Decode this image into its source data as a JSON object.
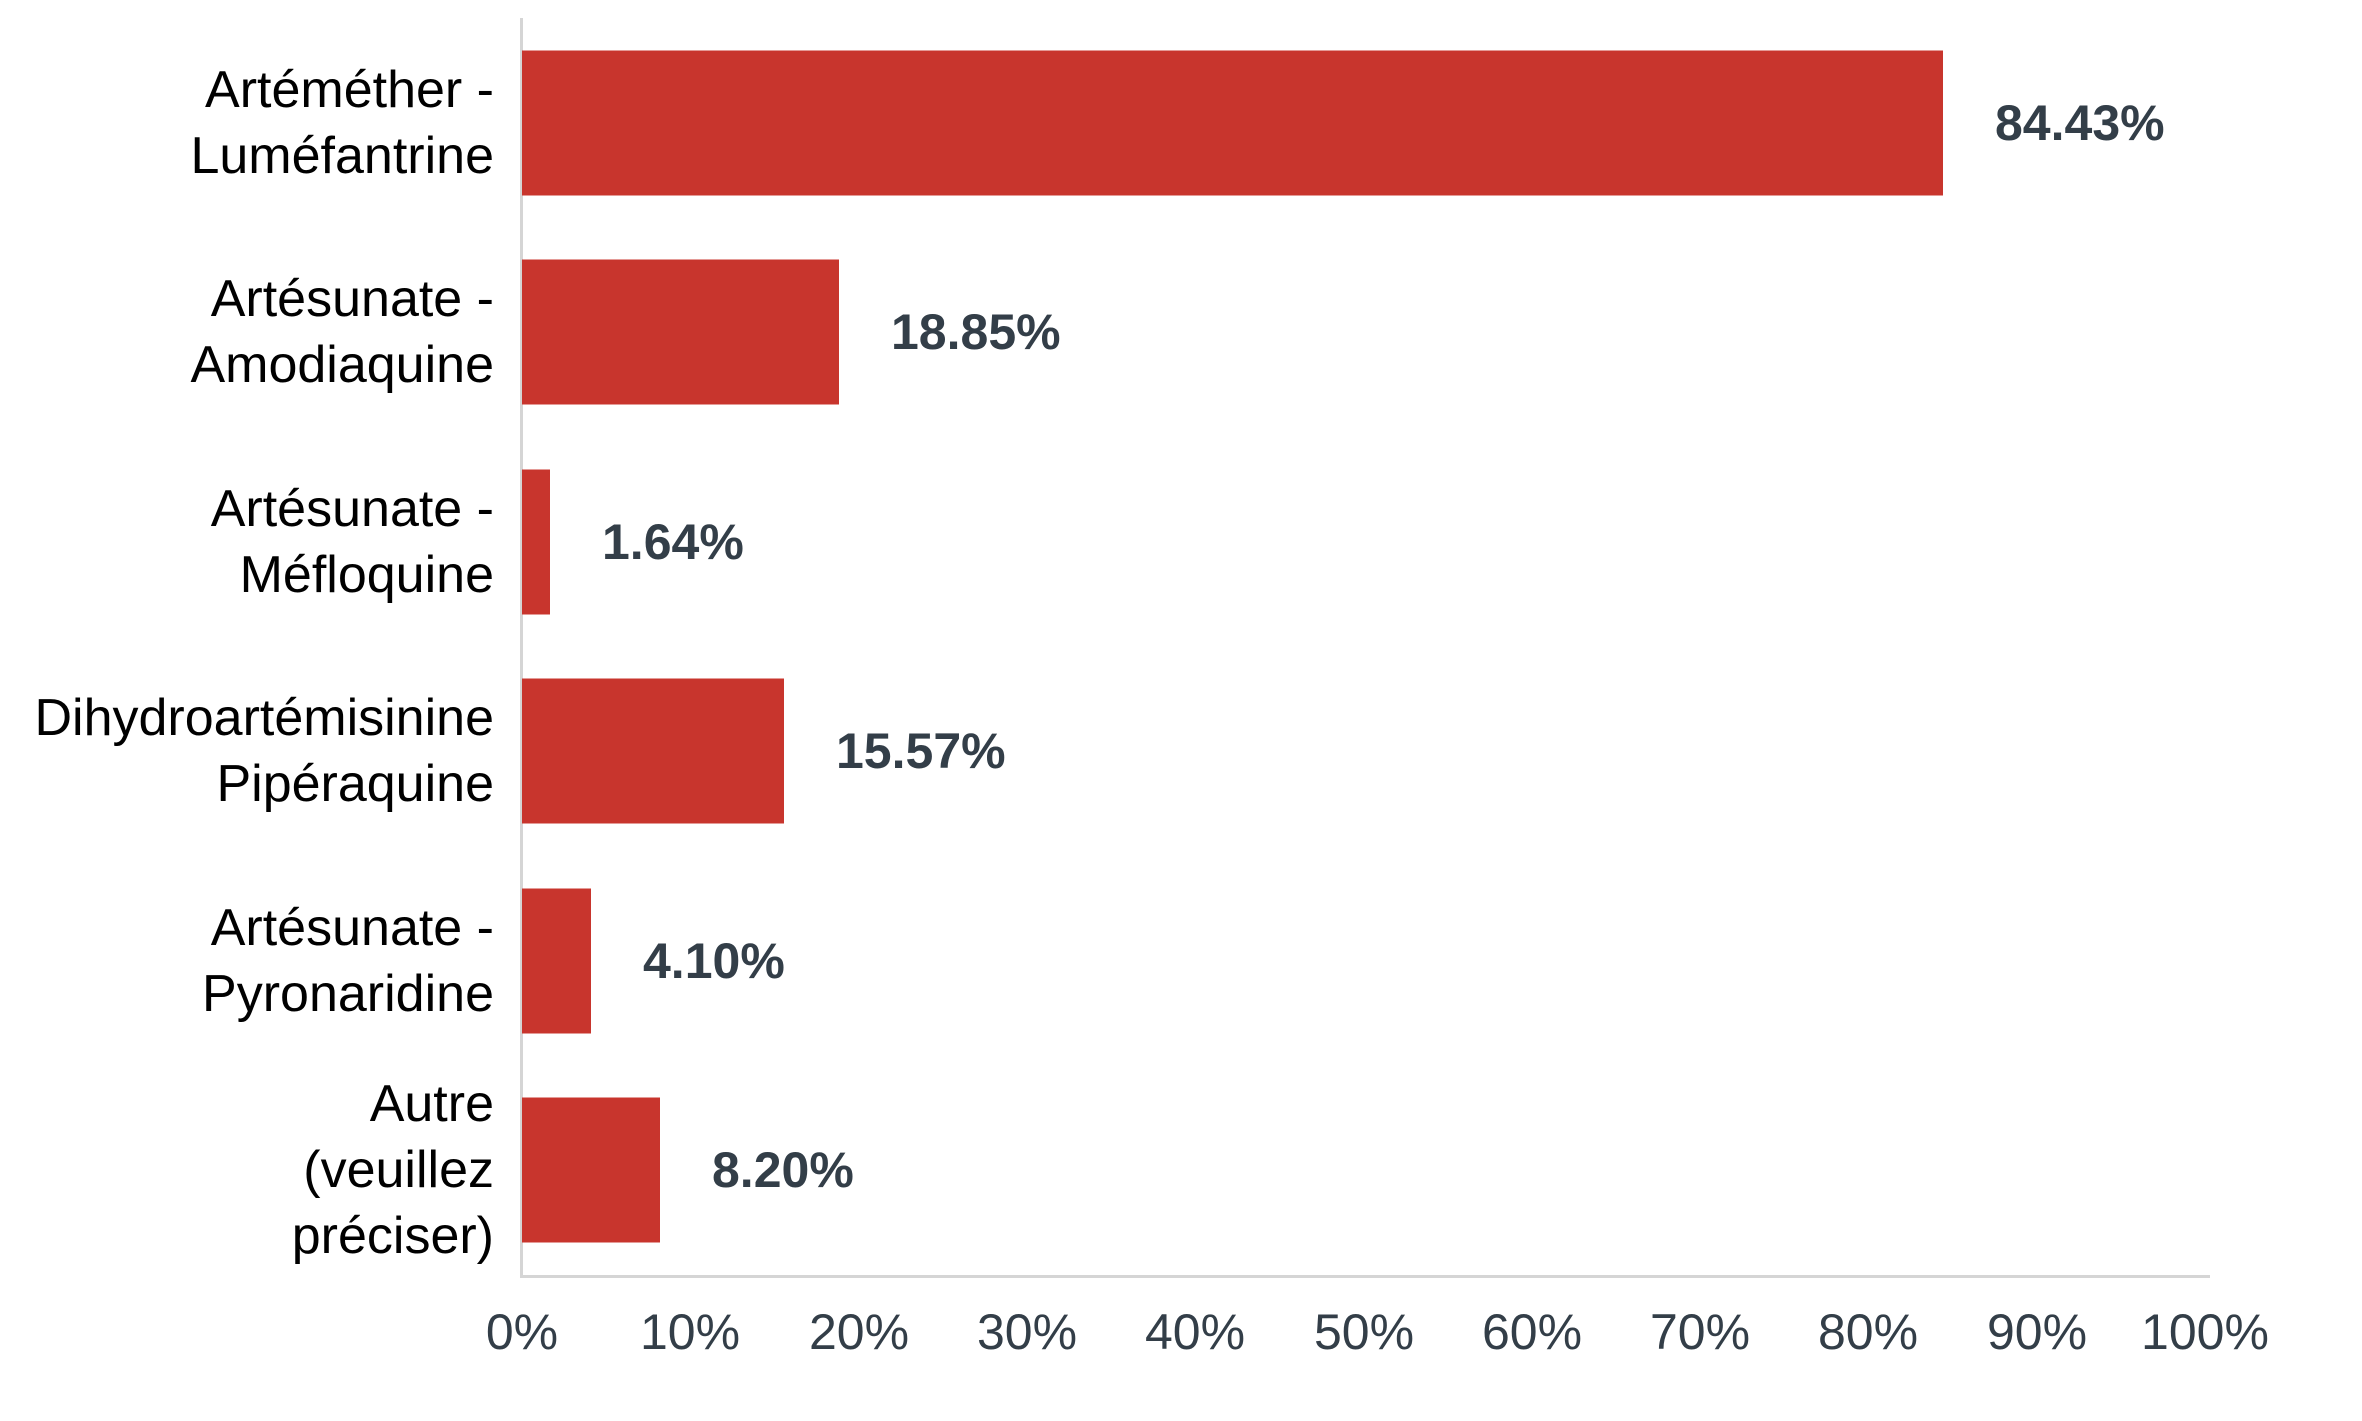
{
  "chart_data": {
    "type": "bar",
    "orientation": "horizontal",
    "title": "",
    "categories": [
      "Artéméther - Luméfantrine",
      "Artésunate - Amodiaquine",
      "Artésunate - Méfloquine",
      "Dihydroartémisinine Pipéraquine",
      "Artésunate - Pyronaridine",
      "Autre (veuillez préciser)"
    ],
    "category_label_lines": [
      [
        "Artéméther -",
        "Luméfantrine"
      ],
      [
        "Artésunate -",
        "Amodiaquine"
      ],
      [
        "Artésunate -",
        "Méfloquine"
      ],
      [
        "Dihydroartémisinine",
        "Pipéraquine"
      ],
      [
        "Artésunate -",
        "Pyronaridine"
      ],
      [
        "Autre",
        "(veuillez",
        "préciser)"
      ]
    ],
    "values": [
      84.43,
      18.85,
      1.64,
      15.57,
      4.1,
      8.2
    ],
    "value_labels": [
      "84.43%",
      "18.85%",
      "1.64%",
      "15.57%",
      "4.10%",
      "8.20%"
    ],
    "x_tick_labels": [
      "0%",
      "10%",
      "20%",
      "30%",
      "40%",
      "50%",
      "60%",
      "70%",
      "80%",
      "90%",
      "100%"
    ],
    "xlim": [
      0,
      100
    ],
    "xlabel": "",
    "ylabel": "",
    "legend": "none",
    "grid": "off",
    "colors": {
      "bar": "#c8352d",
      "value_label": "#333e48",
      "tick_label": "#333e48",
      "category_label": "#000000",
      "axis_line": "#d5d5d5",
      "background": "#ffffff"
    }
  }
}
